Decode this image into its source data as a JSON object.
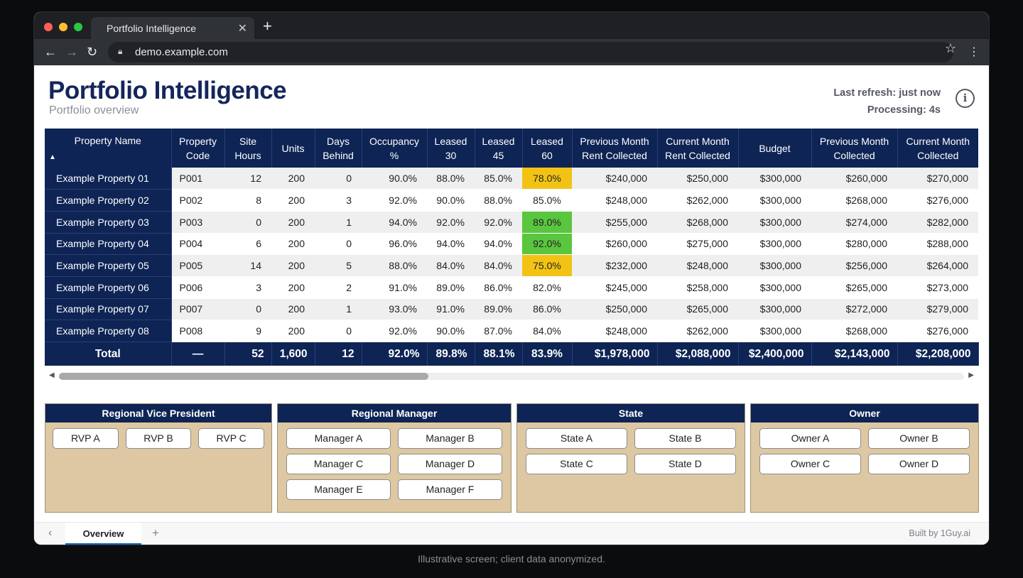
{
  "browser": {
    "tab_title": "Portfolio Intelligence",
    "url": "demo.example.com"
  },
  "header": {
    "title": "Portfolio Intelligence",
    "subtitle": "Portfolio overview",
    "last_refresh": "Last refresh: just now",
    "processing": "Processing: 4s"
  },
  "table": {
    "columns": [
      "Property Name",
      "Property Code",
      "Site Hours",
      "Units",
      "Days Behind",
      "Occupancy %",
      "Leased 30",
      "Leased 45",
      "Leased 60",
      "Previous Month Rent Collected",
      "Current Month Rent Collected",
      "Budget",
      "Previous Month Collected",
      "Current Month Collected"
    ],
    "rows": [
      {
        "name": "Example Property 01",
        "code": "P001",
        "site_hours": "12",
        "units": "200",
        "days_behind": "0",
        "occupancy": "90.0%",
        "leased30": "88.0%",
        "leased45": "85.0%",
        "leased60": "78.0%",
        "prev_rent": "$240,000",
        "cur_rent": "$250,000",
        "budget": "$300,000",
        "prev_collected": "$260,000",
        "cur_collected": "$270,000"
      },
      {
        "name": "Example Property 02",
        "code": "P002",
        "site_hours": "8",
        "units": "200",
        "days_behind": "3",
        "occupancy": "92.0%",
        "leased30": "90.0%",
        "leased45": "88.0%",
        "leased60": "85.0%",
        "prev_rent": "$248,000",
        "cur_rent": "$262,000",
        "budget": "$300,000",
        "prev_collected": "$268,000",
        "cur_collected": "$276,000"
      },
      {
        "name": "Example Property 03",
        "code": "P003",
        "site_hours": "0",
        "units": "200",
        "days_behind": "1",
        "occupancy": "94.0%",
        "leased30": "92.0%",
        "leased45": "92.0%",
        "leased60": "89.0%",
        "prev_rent": "$255,000",
        "cur_rent": "$268,000",
        "budget": "$300,000",
        "prev_collected": "$274,000",
        "cur_collected": "$282,000"
      },
      {
        "name": "Example Property 04",
        "code": "P004",
        "site_hours": "6",
        "units": "200",
        "days_behind": "0",
        "occupancy": "96.0%",
        "leased30": "94.0%",
        "leased45": "94.0%",
        "leased60": "92.0%",
        "prev_rent": "$260,000",
        "cur_rent": "$275,000",
        "budget": "$300,000",
        "prev_collected": "$280,000",
        "cur_collected": "$288,000"
      },
      {
        "name": "Example Property 05",
        "code": "P005",
        "site_hours": "14",
        "units": "200",
        "days_behind": "5",
        "occupancy": "88.0%",
        "leased30": "84.0%",
        "leased45": "84.0%",
        "leased60": "75.0%",
        "prev_rent": "$232,000",
        "cur_rent": "$248,000",
        "budget": "$300,000",
        "prev_collected": "$256,000",
        "cur_collected": "$264,000"
      },
      {
        "name": "Example Property 06",
        "code": "P006",
        "site_hours": "3",
        "units": "200",
        "days_behind": "2",
        "occupancy": "91.0%",
        "leased30": "89.0%",
        "leased45": "86.0%",
        "leased60": "82.0%",
        "prev_rent": "$245,000",
        "cur_rent": "$258,000",
        "budget": "$300,000",
        "prev_collected": "$265,000",
        "cur_collected": "$273,000"
      },
      {
        "name": "Example Property 07",
        "code": "P007",
        "site_hours": "0",
        "units": "200",
        "days_behind": "1",
        "occupancy": "93.0%",
        "leased30": "91.0%",
        "leased45": "89.0%",
        "leased60": "86.0%",
        "prev_rent": "$250,000",
        "cur_rent": "$265,000",
        "budget": "$300,000",
        "prev_collected": "$272,000",
        "cur_collected": "$279,000"
      },
      {
        "name": "Example Property 08",
        "code": "P008",
        "site_hours": "9",
        "units": "200",
        "days_behind": "0",
        "occupancy": "92.0%",
        "leased30": "90.0%",
        "leased45": "87.0%",
        "leased60": "84.0%",
        "prev_rent": "$248,000",
        "cur_rent": "$262,000",
        "budget": "$300,000",
        "prev_collected": "$268,000",
        "cur_collected": "$276,000"
      }
    ],
    "leased60_highlight": [
      "yellow",
      "none",
      "green",
      "green",
      "yellow",
      "none",
      "none",
      "none"
    ],
    "highlight_colors": {
      "yellow": "#f2c314",
      "green": "#5ac53e"
    },
    "total": {
      "label": "Total",
      "code": "—",
      "site_hours": "52",
      "units": "1,600",
      "days_behind": "12",
      "occupancy": "92.0%",
      "leased30": "89.8%",
      "leased45": "88.1%",
      "leased60": "83.9%",
      "prev_rent": "$1,978,000",
      "cur_rent": "$2,088,000",
      "budget": "$2,400,000",
      "prev_collected": "$2,143,000",
      "cur_collected": "$2,208,000"
    }
  },
  "slicers": [
    {
      "title": "Regional Vice President",
      "options": [
        "RVP A",
        "RVP B",
        "RVP C"
      ]
    },
    {
      "title": "Regional Manager",
      "options": [
        "Manager A",
        "Manager B",
        "Manager C",
        "Manager D",
        "Manager E",
        "Manager F"
      ]
    },
    {
      "title": "State",
      "options": [
        "State A",
        "State B",
        "State C",
        "State D"
      ]
    },
    {
      "title": "Owner",
      "options": [
        "Owner A",
        "Owner B",
        "Owner C",
        "Owner D"
      ]
    }
  ],
  "bottom": {
    "tab_label": "Overview",
    "built_by": "Built by 1Guy.ai"
  },
  "caption": "Illustrative screen; client data anonymized.",
  "colors": {
    "navy": "#0e2455",
    "slicer_bg": "#ddc8a3",
    "title": "#15265b"
  }
}
